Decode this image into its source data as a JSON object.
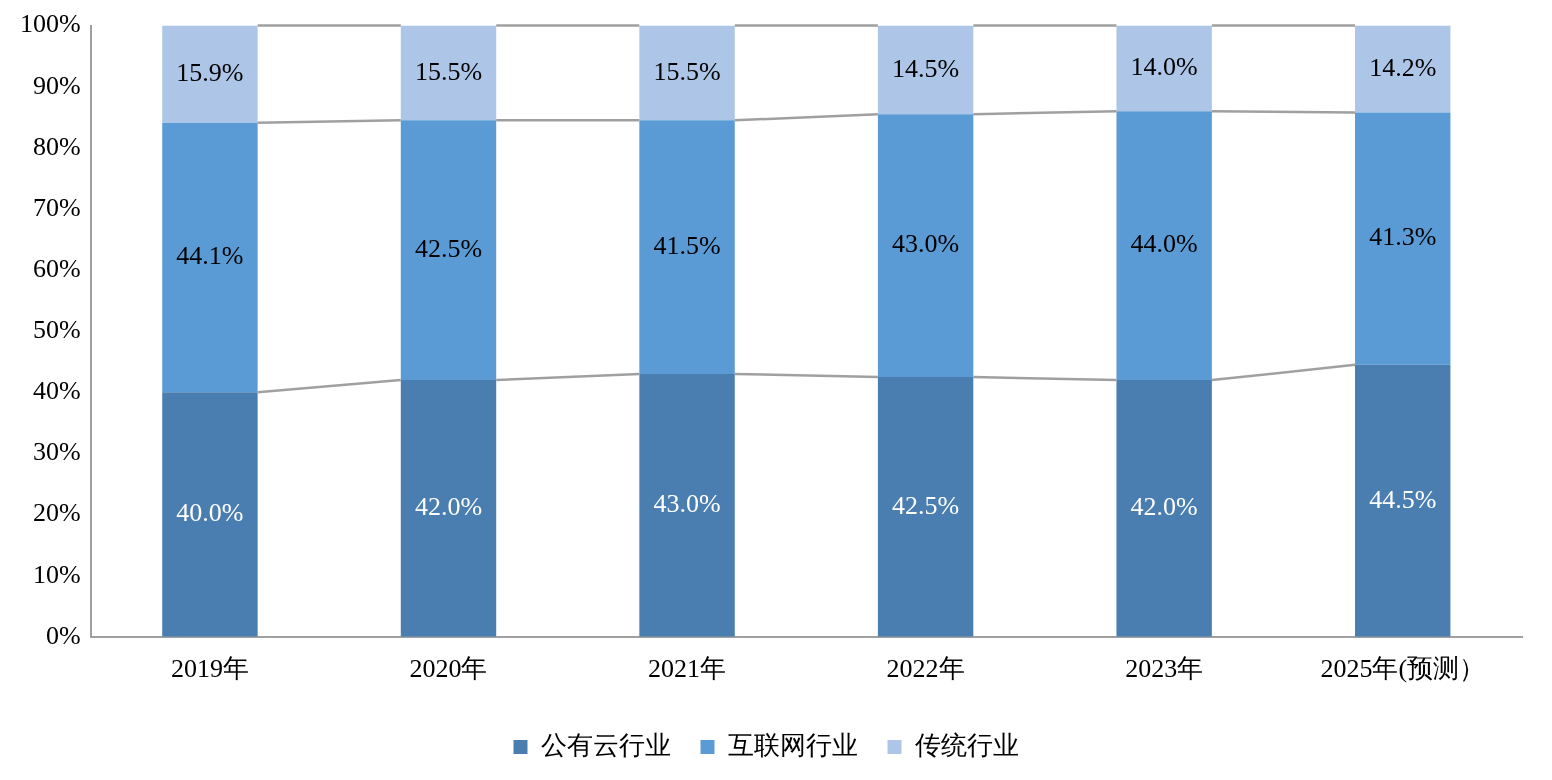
{
  "chart_data": {
    "type": "bar",
    "stacked": true,
    "categories": [
      "2019年",
      "2020年",
      "2021年",
      "2022年",
      "2023年",
      "2025年(预测）"
    ],
    "series": [
      {
        "name": "公有云行业",
        "color": "#4a7eb0",
        "values": [
          40.0,
          42.0,
          43.0,
          42.5,
          42.0,
          44.5
        ],
        "value_labels": [
          "40.0%",
          "42.0%",
          "43.0%",
          "42.5%",
          "42.0%",
          "44.5%"
        ]
      },
      {
        "name": "互联网行业",
        "color": "#5b9bd5",
        "values": [
          44.1,
          42.5,
          41.5,
          43.0,
          44.0,
          41.3
        ],
        "value_labels": [
          "44.1%",
          "42.5%",
          "41.5%",
          "43.0%",
          "44.0%",
          "41.3%"
        ]
      },
      {
        "name": "传统行业",
        "color": "#adc6e8",
        "values": [
          15.9,
          15.5,
          15.5,
          14.5,
          14.0,
          14.2
        ],
        "value_labels": [
          "15.9%",
          "15.5%",
          "15.5%",
          "14.5%",
          "14.0%",
          "14.2%"
        ]
      }
    ],
    "ylim": [
      0,
      100
    ],
    "yticks": [
      {
        "value": 0,
        "label": "0%"
      },
      {
        "value": 10,
        "label": "10%"
      },
      {
        "value": 20,
        "label": "20%"
      },
      {
        "value": 30,
        "label": "30%"
      },
      {
        "value": 40,
        "label": "40%"
      },
      {
        "value": 50,
        "label": "50%"
      },
      {
        "value": 60,
        "label": "60%"
      },
      {
        "value": 70,
        "label": "70%"
      },
      {
        "value": 80,
        "label": "80%"
      },
      {
        "value": 90,
        "label": "90%"
      },
      {
        "value": 100,
        "label": "100%"
      }
    ],
    "grid": false,
    "legend": "bottom"
  }
}
